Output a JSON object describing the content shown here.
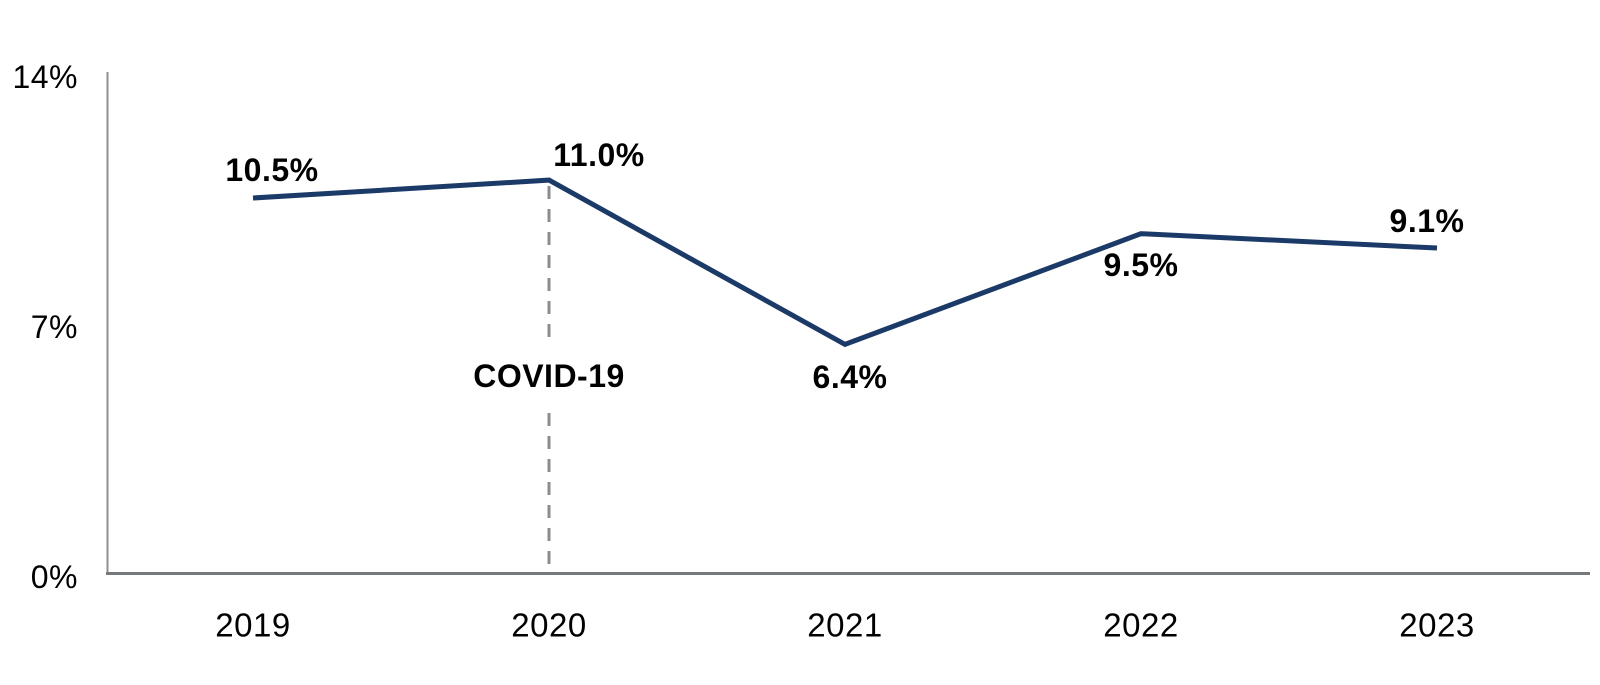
{
  "chart_data": {
    "type": "line",
    "categories": [
      "2019",
      "2020",
      "2021",
      "2022",
      "2023"
    ],
    "values": [
      10.5,
      11.0,
      6.4,
      9.5,
      9.1
    ],
    "point_labels": [
      "10.5%",
      "11.0%",
      "6.4%",
      "9.5%",
      "9.1%"
    ],
    "y_axis": {
      "min": 0,
      "max": 14,
      "ticks": [
        {
          "value": 14,
          "label": "14%"
        },
        {
          "value": 7,
          "label": "7%"
        },
        {
          "value": 0,
          "label": "0%"
        }
      ]
    },
    "annotation": {
      "text": "COVID-19",
      "at_category": "2020"
    },
    "grid": false,
    "legend": false,
    "colors": {
      "line": "#1b3a67",
      "x_axis": "#75797b",
      "y_axis": "#8b8f90",
      "dashed_line": "#8c8c8c",
      "text": "#000000"
    }
  }
}
